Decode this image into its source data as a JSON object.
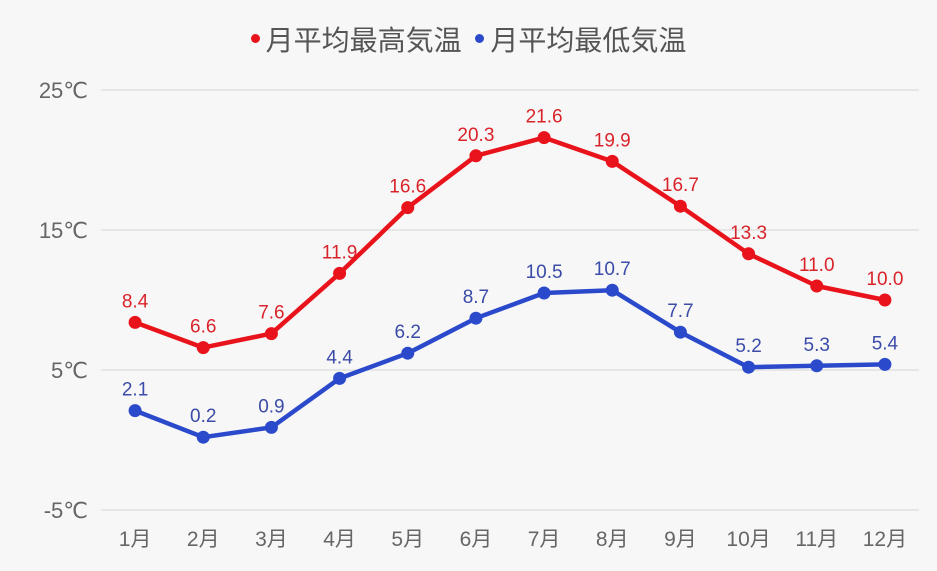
{
  "legend": {
    "high_label": "月平均最高気温",
    "low_label": "月平均最低気温"
  },
  "colors": {
    "high_line": "#e8131b",
    "high_label": "#d9232a",
    "low_line": "#2b4acb",
    "low_label": "#3b4ba8",
    "grid": "#dcdcdc",
    "axis_text": "#666666",
    "background": "#f7f7f7"
  },
  "chart_data": {
    "type": "line",
    "title": "",
    "xlabel": "",
    "ylabel": "",
    "categories": [
      "1月",
      "2月",
      "3月",
      "4月",
      "5月",
      "6月",
      "7月",
      "8月",
      "9月",
      "10月",
      "11月",
      "12月"
    ],
    "series": [
      {
        "name": "月平均最高気温",
        "values": [
          8.4,
          6.6,
          7.6,
          11.9,
          16.6,
          20.3,
          21.6,
          19.9,
          16.7,
          13.3,
          11.0,
          10.0
        ]
      },
      {
        "name": "月平均最低気温",
        "values": [
          2.1,
          0.2,
          0.9,
          4.4,
          6.2,
          8.7,
          10.5,
          10.7,
          7.7,
          5.2,
          5.3,
          5.4
        ]
      }
    ],
    "value_labels": {
      "high": [
        "8.4",
        "6.6",
        "7.6",
        "11.9",
        "16.6",
        "20.3",
        "21.6",
        "19.9",
        "16.7",
        "13.3",
        "11.0",
        "10.0"
      ],
      "low": [
        "2.1",
        "0.2",
        "0.9",
        "4.4",
        "6.2",
        "8.7",
        "10.5",
        "10.7",
        "7.7",
        "5.2",
        "5.3",
        "5.4"
      ]
    },
    "yticks": [
      25,
      15,
      5,
      -5
    ],
    "ytick_labels": [
      "25℃",
      "15℃",
      "5℃",
      "-5℃"
    ],
    "ylim": [
      -5,
      25
    ],
    "grid": true,
    "legend_position": "top"
  }
}
